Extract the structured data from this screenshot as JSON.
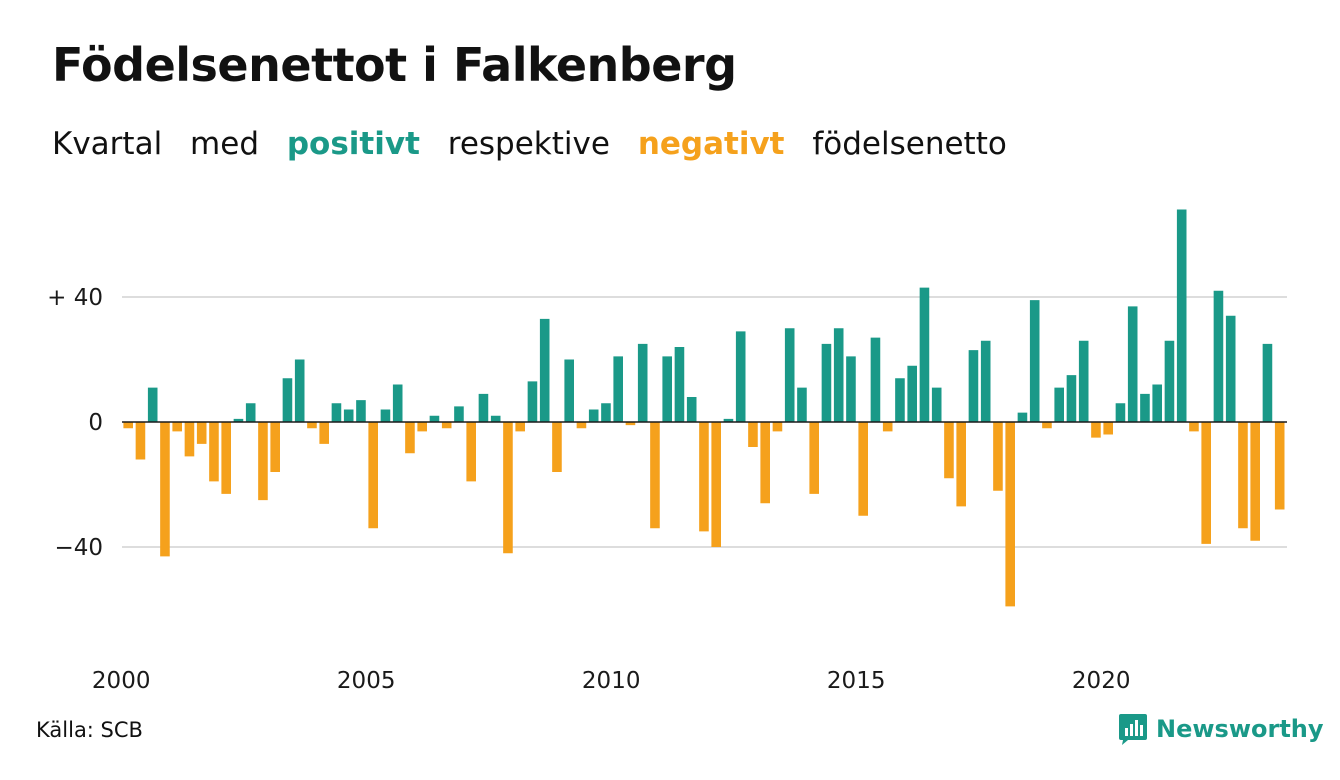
{
  "header": {
    "title": "Födelsenettot i Falkenberg",
    "subtitle": {
      "w1": "Kvartal",
      "w2": "med",
      "positive": "positivt",
      "w3": "respektive",
      "negative": "negativt",
      "w4": "födelsenetto"
    }
  },
  "colors": {
    "positive": "#1a9988",
    "negative": "#f5a11c",
    "grid": "#dddddd",
    "zero_line": "#1a1a1a",
    "text": "#111111"
  },
  "footer": {
    "source": "Källa: SCB",
    "brand": "Newsworthy",
    "brand_icon": "newsworthy-logo-icon"
  },
  "chart_data": {
    "type": "bar",
    "title": "Födelsenettot i Falkenberg",
    "subtitle": "Kvartal med positivt respektive negativt födelsenetto",
    "xlabel": "",
    "ylabel": "",
    "x_start": "2000 Q1",
    "x_tick_labels": [
      "2000",
      "2005",
      "2010",
      "2015",
      "2020"
    ],
    "y_ticks": [
      {
        "value": 40,
        "label": "+ 40"
      },
      {
        "value": 0,
        "label": "0"
      },
      {
        "value": -40,
        "label": "−40"
      }
    ],
    "ylim": [
      -70,
      70
    ],
    "grid": true,
    "legend": "none",
    "values": [
      -2,
      -12,
      11,
      -43,
      -3,
      -11,
      -7,
      -19,
      -23,
      1,
      6,
      -25,
      -16,
      14,
      20,
      -2,
      -7,
      6,
      4,
      7,
      -34,
      4,
      12,
      -10,
      -3,
      2,
      -2,
      5,
      -19,
      9,
      2,
      -42,
      -3,
      13,
      33,
      -16,
      20,
      -2,
      4,
      6,
      21,
      -1,
      25,
      -34,
      21,
      24,
      8,
      -35,
      -40,
      1,
      29,
      -8,
      -26,
      -3,
      30,
      11,
      -23,
      25,
      30,
      21,
      -30,
      27,
      -3,
      14,
      18,
      43,
      11,
      -18,
      -27,
      23,
      26,
      -22,
      -59,
      3,
      39,
      -2,
      11,
      15,
      26,
      -5,
      -4,
      6,
      37,
      9,
      12,
      26,
      68,
      -3,
      -39,
      42,
      34,
      -34,
      -38,
      25,
      -28
    ]
  }
}
